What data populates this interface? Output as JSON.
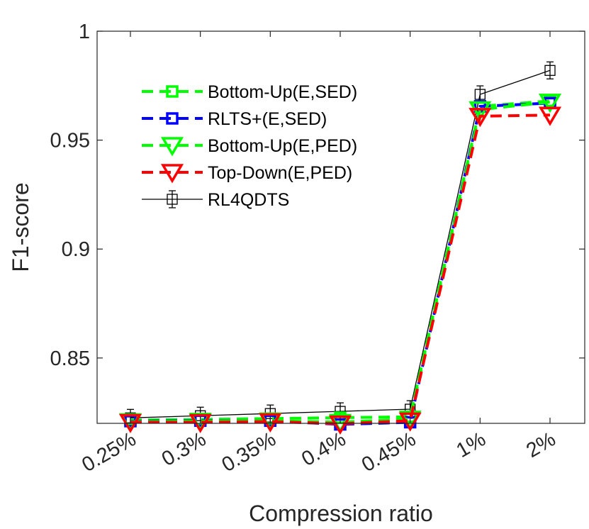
{
  "chart_data": {
    "type": "line",
    "title": "",
    "xlabel": "Compression ratio",
    "ylabel": "F1-score",
    "categories": [
      "0.25%",
      "0.3%",
      "0.35%",
      "0.4%",
      "0.45%",
      "1%",
      "2%"
    ],
    "ylim": [
      0.82,
      1.0
    ],
    "yticks": [
      0.85,
      0.9,
      0.95,
      1.0
    ],
    "ytick_labels": [
      "0.85",
      "0.9",
      "0.95",
      "1"
    ],
    "grid": false,
    "legend_position": "top-left",
    "series": [
      {
        "name": "Bottom-Up(E,SED)",
        "color": "#00ff00",
        "line_style": "dashed",
        "marker": "square",
        "values": [
          0.8215,
          0.8218,
          0.8222,
          0.8226,
          0.823,
          0.9655,
          0.968
        ]
      },
      {
        "name": "RLTS+(E,SED)",
        "color": "#0000ff",
        "line_style": "dashed",
        "marker": "square",
        "values": [
          0.821,
          0.8212,
          0.8212,
          0.8195,
          0.8205,
          0.9655,
          0.967
        ]
      },
      {
        "name": "Bottom-Up(E,PED)",
        "color": "#00ff00",
        "line_style": "dashed",
        "marker": "triangle-down",
        "values": [
          0.8208,
          0.821,
          0.8212,
          0.8205,
          0.822,
          0.964,
          0.9675
        ]
      },
      {
        "name": "Top-Down(E,PED)",
        "color": "#ff0000",
        "line_style": "dashed",
        "marker": "triangle-down",
        "values": [
          0.8205,
          0.8205,
          0.8208,
          0.8198,
          0.8212,
          0.961,
          0.9615
        ]
      },
      {
        "name": "RL4QDTS",
        "color": "#000000",
        "line_style": "solid",
        "marker": "square-errorbar",
        "values": [
          0.8225,
          0.8235,
          0.8245,
          0.8255,
          0.8265,
          0.971,
          0.982
        ]
      }
    ]
  }
}
